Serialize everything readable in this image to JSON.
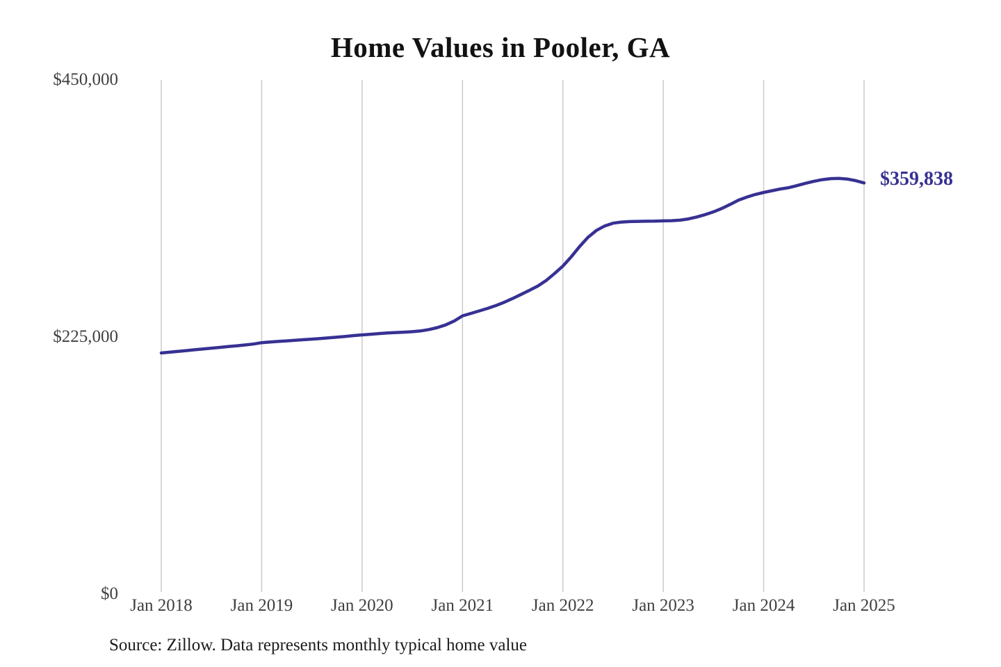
{
  "chart": {
    "title": "Home Values in Pooler, GA",
    "end_label": "$359,838",
    "source": "Source: Zillow. Data represents monthly typical home value",
    "colors": {
      "line": "#373193",
      "grid": "#cdcdcd",
      "axis_text": "#3f3f3f",
      "title_text": "#121212",
      "source_text": "#1c1c1c"
    }
  },
  "chart_data": {
    "type": "line",
    "title": "Home Values in Pooler, GA",
    "xlabel": "",
    "ylabel": "",
    "frequency": "monthly",
    "x_start": "Jan 2018",
    "x_end": "Jan 2025",
    "x_tick_labels": [
      "Jan 2018",
      "Jan 2019",
      "Jan 2020",
      "Jan 2021",
      "Jan 2022",
      "Jan 2023",
      "Jan 2024",
      "Jan 2025"
    ],
    "y_tick_labels": [
      "$0",
      "$225,000",
      "$450,000"
    ],
    "y_tick_values": [
      0,
      225000,
      450000
    ],
    "ylim": [
      0,
      450000
    ],
    "grid": "vertical-only",
    "end_value": 359838,
    "series": [
      {
        "name": "Typical home value",
        "values": [
          211000,
          211700,
          212400,
          213100,
          213800,
          214500,
          215200,
          215900,
          216600,
          217300,
          218000,
          218800,
          220000,
          220600,
          221100,
          221600,
          222100,
          222600,
          223100,
          223600,
          224200,
          224900,
          225500,
          226200,
          226800,
          227400,
          228000,
          228500,
          228900,
          229200,
          229600,
          230300,
          231500,
          233200,
          235600,
          238900,
          243500,
          245600,
          247800,
          250000,
          252500,
          255400,
          258700,
          262200,
          265800,
          269500,
          274400,
          280500,
          287000,
          295200,
          304200,
          312200,
          318200,
          322200,
          324600,
          325600,
          326000,
          326200,
          326300,
          326400,
          326600,
          326800,
          327200,
          328300,
          330000,
          332100,
          334500,
          337500,
          341000,
          344800,
          347500,
          349700,
          351500,
          353000,
          354500,
          355700,
          357500,
          359500,
          361300,
          362700,
          363600,
          363800,
          363200,
          361800,
          359838
        ]
      }
    ]
  }
}
